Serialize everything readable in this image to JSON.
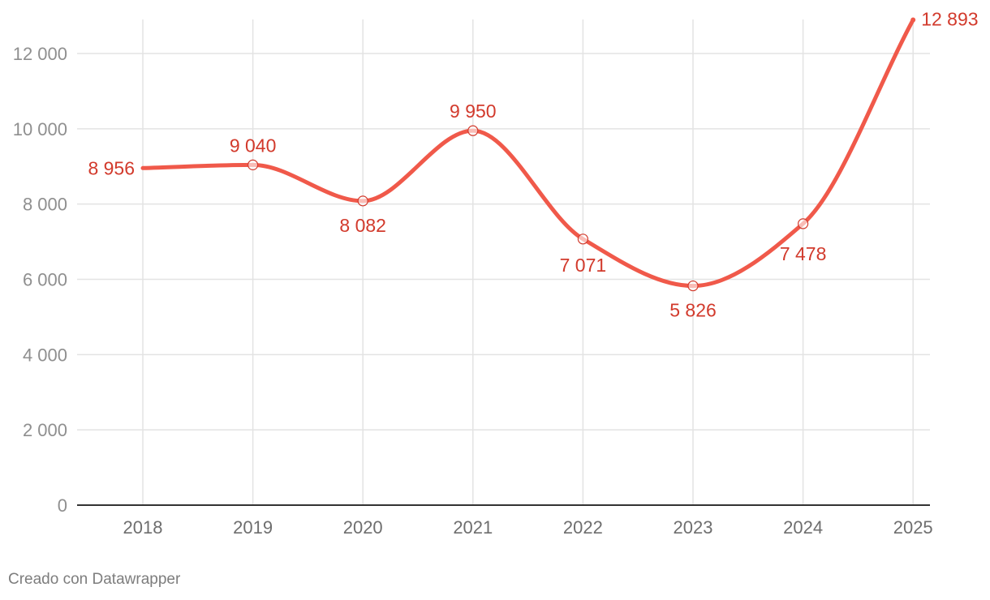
{
  "chart_data": {
    "type": "line",
    "title": "",
    "xlabel": "",
    "ylabel": "",
    "x": [
      "2018",
      "2019",
      "2020",
      "2021",
      "2022",
      "2023",
      "2024",
      "2025"
    ],
    "series": [
      {
        "values": [
          8956,
          9040,
          8082,
          9950,
          7071,
          5826,
          7478,
          12893
        ],
        "labels": [
          "8 956",
          "9 040",
          "8 082",
          "9 950",
          "7 071",
          "5 826",
          "7 478",
          "12 893"
        ],
        "color": "#f0594a"
      }
    ],
    "ylim": [
      0,
      12893
    ],
    "yticks": [
      0,
      2000,
      4000,
      6000,
      8000,
      10000,
      12000
    ],
    "ytick_labels": [
      "0",
      "2 000",
      "4 000",
      "6 000",
      "8 000",
      "10 000",
      "12 000"
    ],
    "grid": true,
    "label_color": "#d23a2c",
    "grid_color": "#e3e3e3"
  },
  "credit": "Creado con Datawrapper"
}
